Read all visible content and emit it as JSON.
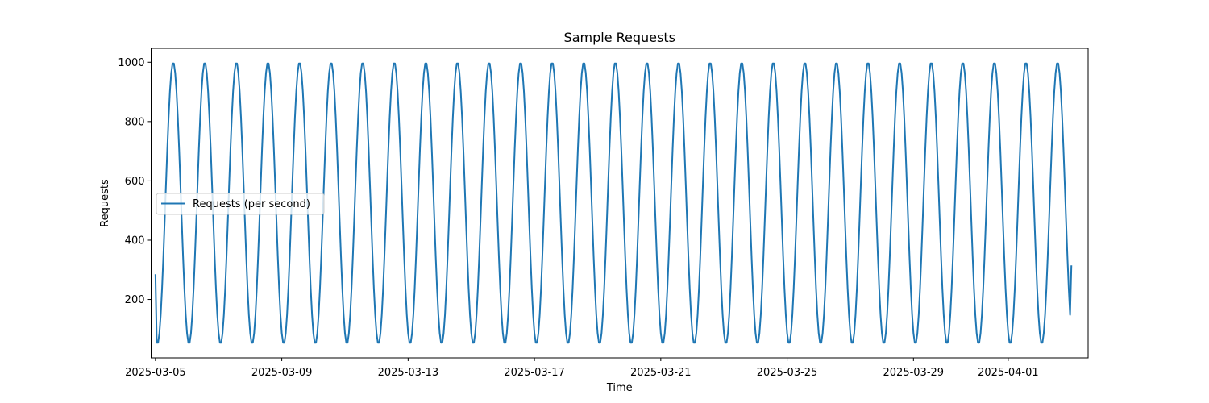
{
  "chart_data": {
    "type": "line",
    "title": "Sample Requests",
    "xlabel": "Time",
    "ylabel": "Requests",
    "x_range": [
      "2025-03-04T20:43",
      "2025-04-03T12:43"
    ],
    "ylim": [
      3,
      1047
    ],
    "y_ticks": [
      200,
      400,
      600,
      800,
      1000
    ],
    "x_ticks": [
      "2025-03-05",
      "2025-03-09",
      "2025-03-13",
      "2025-03-17",
      "2025-03-21",
      "2025-03-25",
      "2025-03-29",
      "2025-04-01"
    ],
    "grid": false,
    "legend_position": "center-left",
    "series": [
      {
        "name": "Requests (per second)",
        "color": "#1f77b4",
        "period_hours": 24,
        "sampling": "hourly",
        "start": "2025-03-05T00:00",
        "end": "2025-04-03T00:00",
        "min": 50,
        "max": 1000,
        "start_value": 285,
        "end_value": 315,
        "peak_time_of_day": "13:30"
      }
    ]
  }
}
